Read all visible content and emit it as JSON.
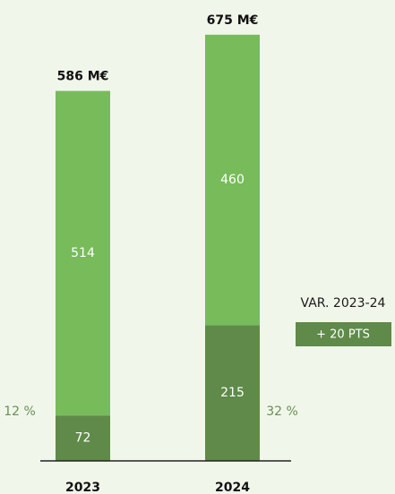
{
  "chart_data": {
    "type": "stacked_bar",
    "categories": [
      "2023",
      "2024"
    ],
    "series": [
      {
        "name": null,
        "color": "#5f8a49",
        "values": [
          72,
          215
        ]
      },
      {
        "name": null,
        "color": "#77bb5b",
        "values": [
          514,
          460
        ]
      }
    ],
    "totals": {
      "values": [
        586,
        675
      ],
      "value_labels": [
        "586 M€",
        "675 M€"
      ]
    },
    "share_labels": [
      "12 %",
      "32 %"
    ],
    "annotation": {
      "title": "VAR. 2023-24",
      "text": "+ 20 PTS"
    },
    "ylim": [
      0,
      730
    ]
  }
}
